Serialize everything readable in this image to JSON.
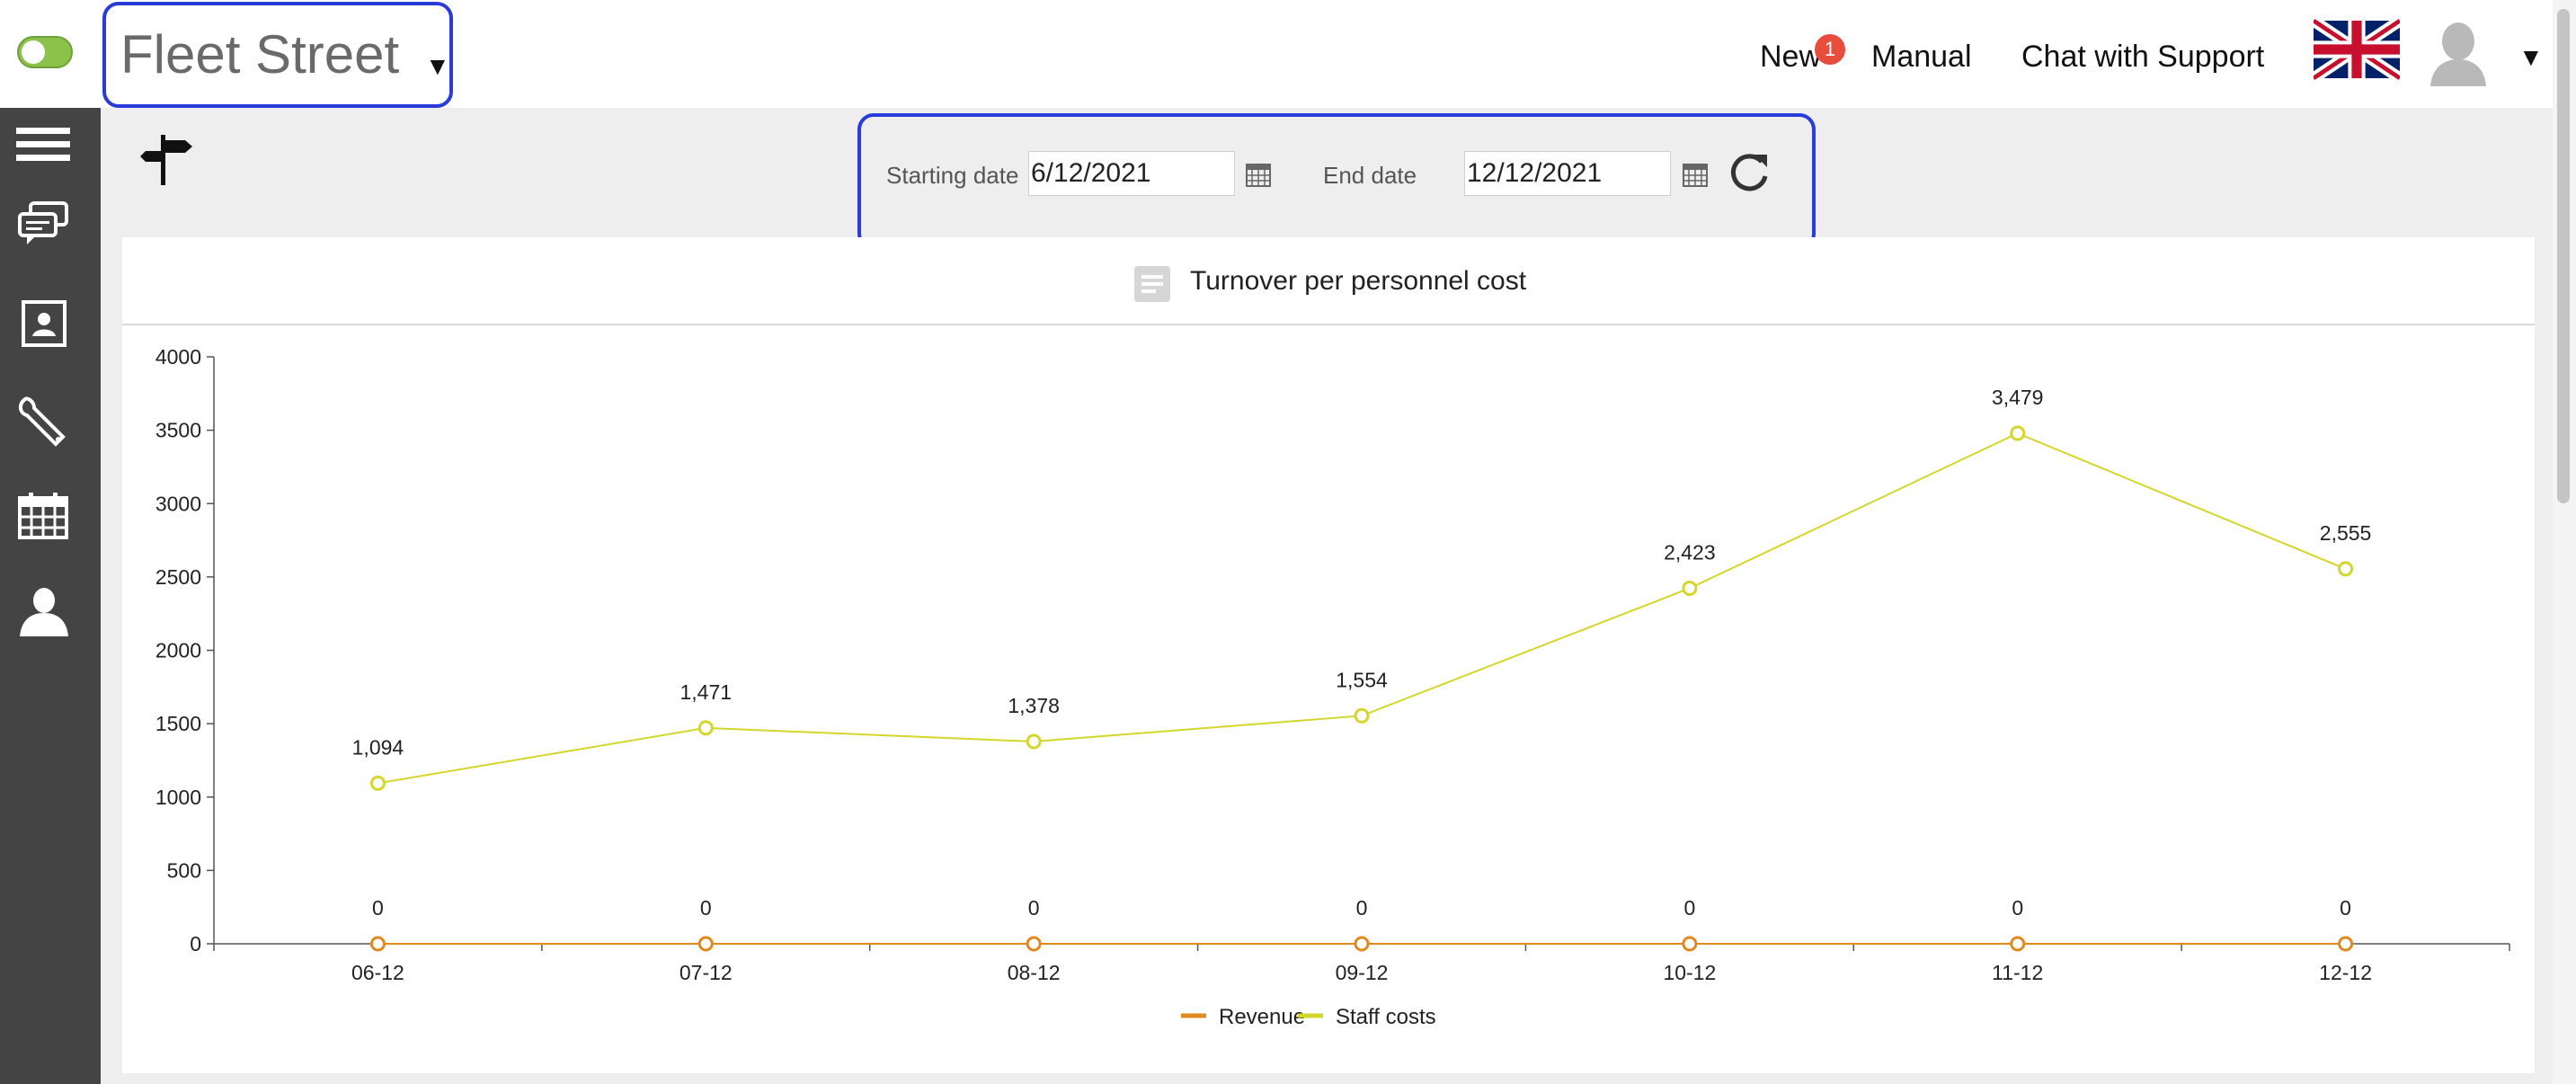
{
  "header": {
    "location": "Fleet Street",
    "nav": {
      "news": "New",
      "news_count": "1",
      "manual": "Manual",
      "support": "Chat with Support"
    },
    "colors": {
      "accent": "#2a3bdc",
      "toggle_on": "#8bc34a",
      "badge": "#e74c3c"
    }
  },
  "sidebar": {
    "icons": [
      "menu-icon",
      "chat-icon",
      "id-card-icon",
      "wrench-icon",
      "calendar-icon",
      "user-icon"
    ]
  },
  "filters": {
    "start_label": "Starting date",
    "start_value": "6/12/2021",
    "end_label": "End date",
    "end_value": "12/12/2021"
  },
  "panel": {
    "title": "Turnover per personnel cost"
  },
  "chart_data": {
    "type": "line",
    "categories": [
      "06-12",
      "07-12",
      "08-12",
      "09-12",
      "10-12",
      "11-12",
      "12-12"
    ],
    "ylim": [
      0,
      4000
    ],
    "yticks": [
      0,
      500,
      1000,
      1500,
      2000,
      2500,
      3000,
      3500,
      4000
    ],
    "grid": false,
    "legend_position": "bottom",
    "series": [
      {
        "name": "Revenue",
        "color": "#e08a1e",
        "values": [
          0,
          0,
          0,
          0,
          0,
          0,
          0
        ],
        "labels": [
          "0",
          "0",
          "0",
          "0",
          "0",
          "0",
          "0"
        ]
      },
      {
        "name": "Staff costs",
        "color": "#d4d62a",
        "values": [
          1094,
          1471,
          1378,
          1554,
          2423,
          3479,
          2555
        ],
        "labels": [
          "1,094",
          "1,471",
          "1,378",
          "1,554",
          "2,423",
          "3,479",
          "2,555"
        ]
      }
    ]
  }
}
